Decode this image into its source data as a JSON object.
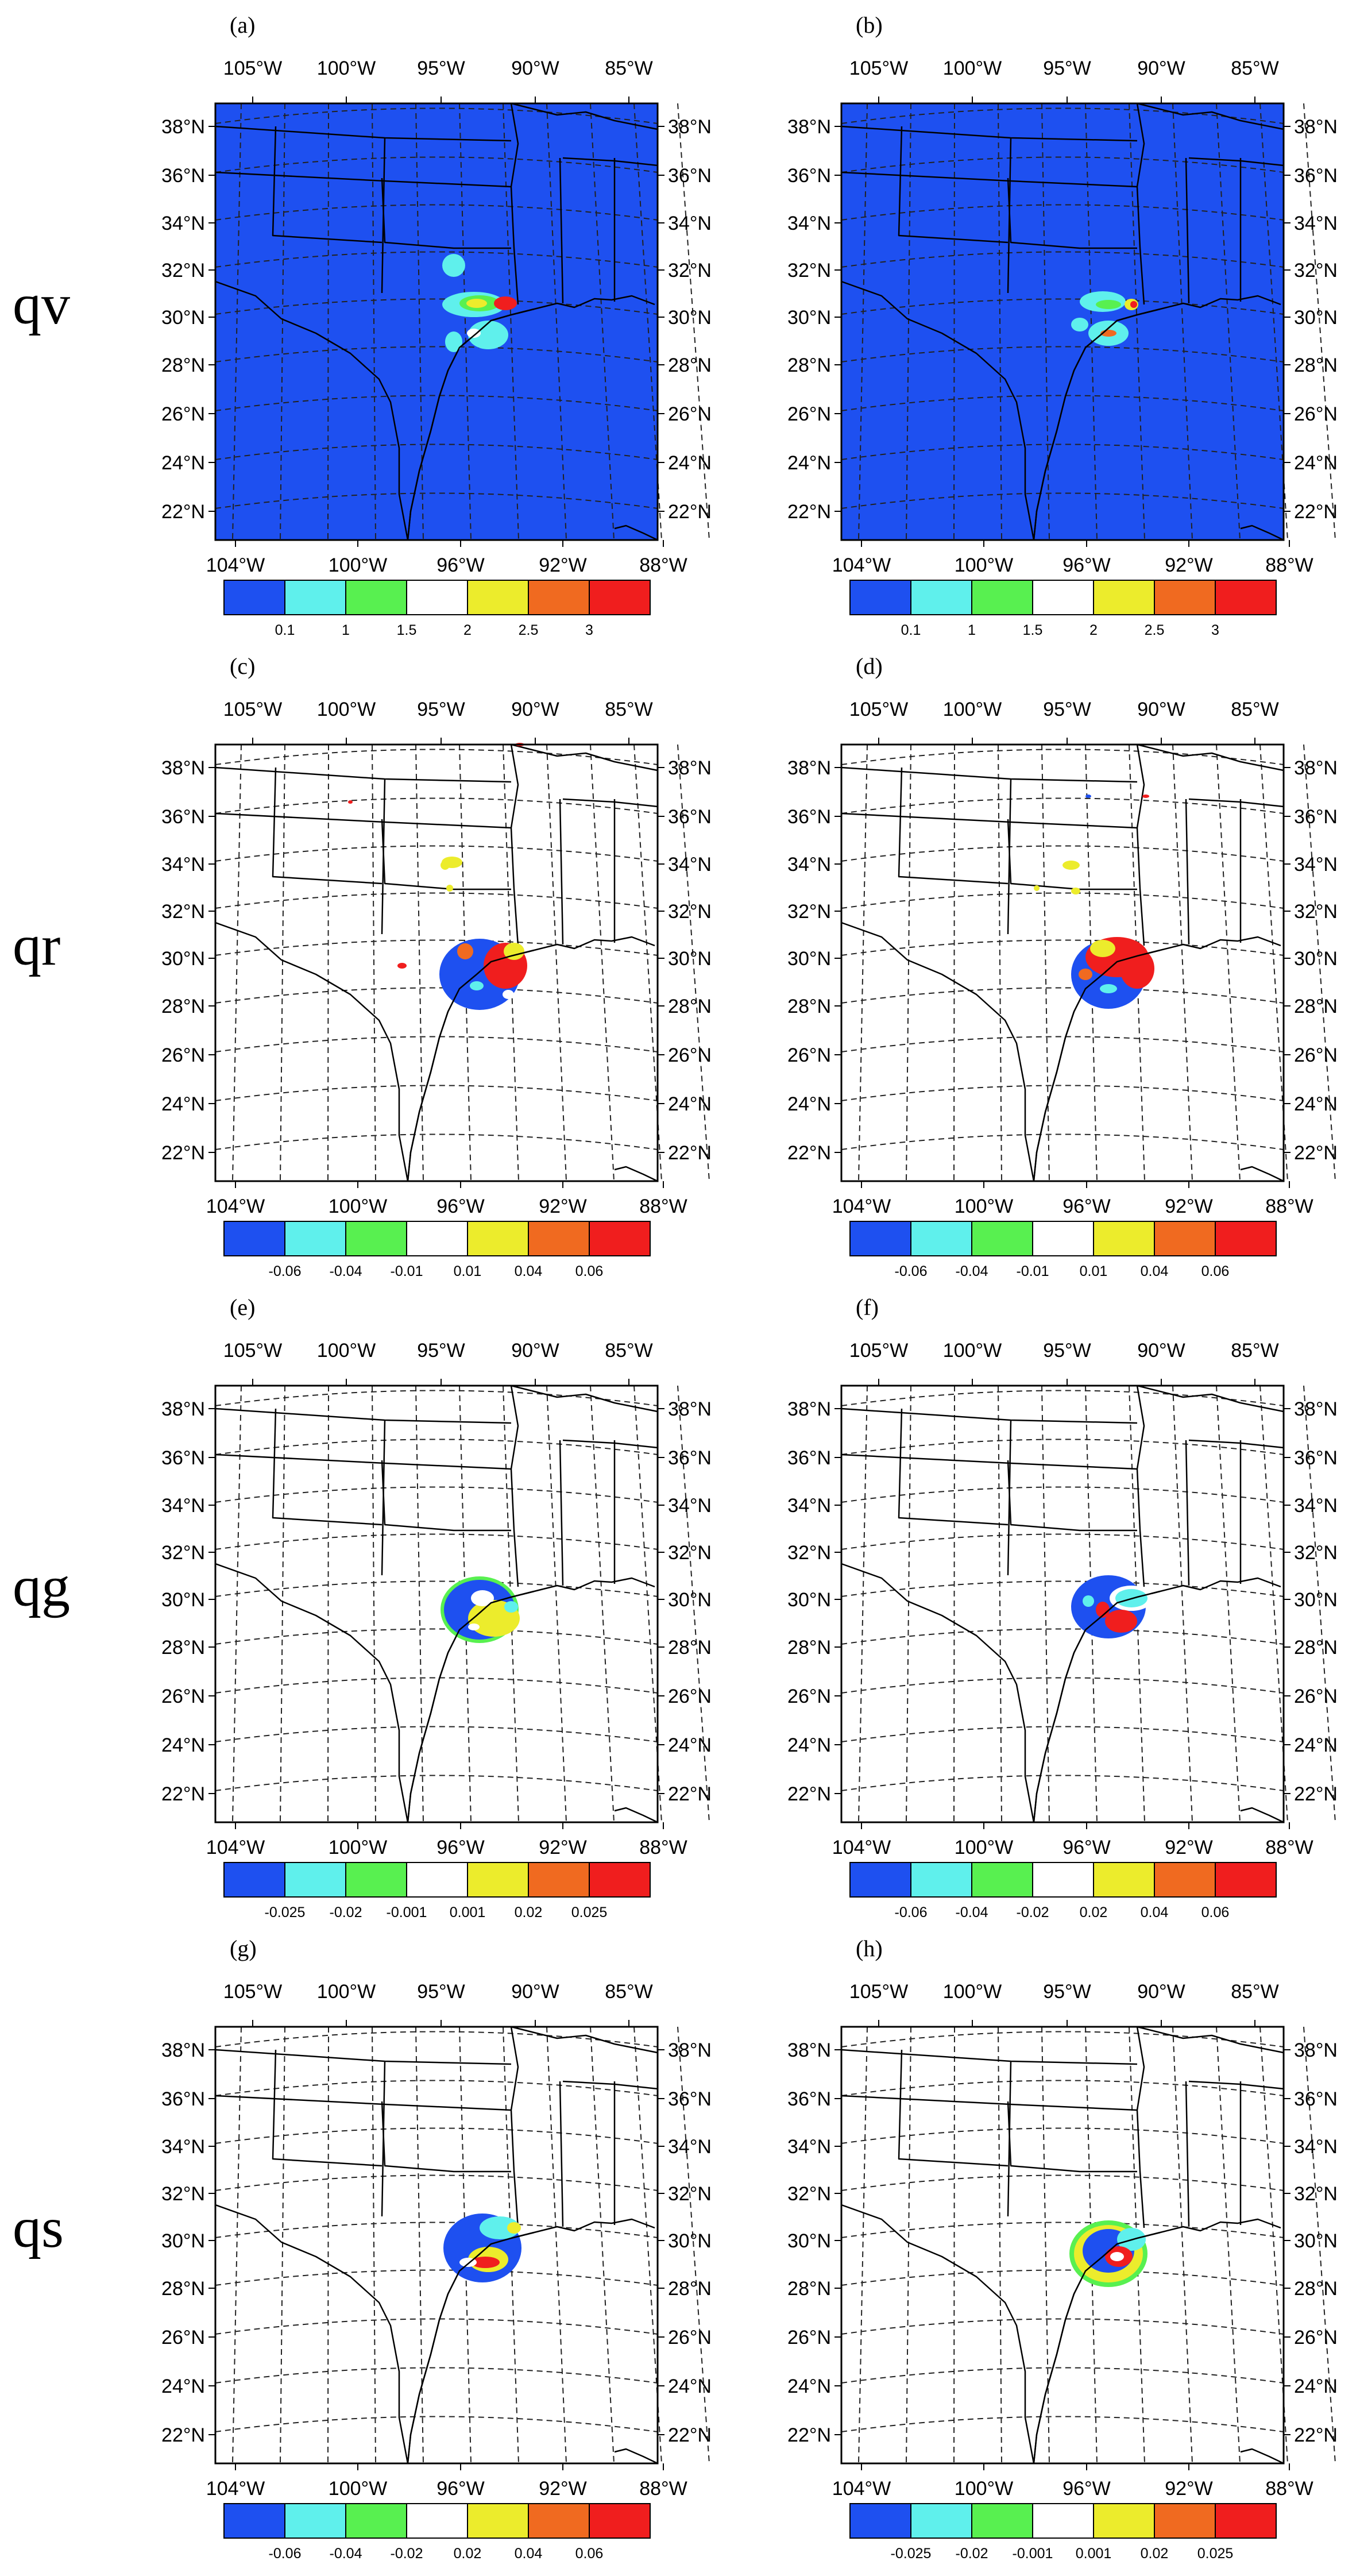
{
  "rows": [
    "qv",
    "qr",
    "qg",
    "qs"
  ],
  "map": {
    "top_lon_labels": [
      "105°W",
      "100°W",
      "95°W",
      "90°W",
      "85°W"
    ],
    "bottom_lon_labels": [
      "104°W",
      "100°W",
      "96°W",
      "92°W",
      "88°W"
    ],
    "lat_labels": [
      "38°N",
      "36°N",
      "34°N",
      "32°N",
      "30°N",
      "28°N",
      "26°N",
      "24°N",
      "22°N"
    ]
  },
  "colors": [
    "#1e50f0",
    "#5ff0ec",
    "#58f050",
    "#ffffff",
    "#ecec2c",
    "#f06a20",
    "#f01e1e"
  ],
  "panels": [
    {
      "letter": "(a)",
      "variable": "qv",
      "background": "blue",
      "ticks": [
        "0.1",
        "1",
        "1.5",
        "2",
        "2.5",
        "3"
      ]
    },
    {
      "letter": "(b)",
      "variable": "qv",
      "background": "blue",
      "ticks": [
        "0.1",
        "1",
        "1.5",
        "2",
        "2.5",
        "3"
      ]
    },
    {
      "letter": "(c)",
      "variable": "qr",
      "background": "white",
      "ticks": [
        "-0.06",
        "-0.04",
        "-0.01",
        "0.01",
        "0.04",
        "0.06"
      ]
    },
    {
      "letter": "(d)",
      "variable": "qr",
      "background": "white",
      "ticks": [
        "-0.06",
        "-0.04",
        "-0.01",
        "0.01",
        "0.04",
        "0.06"
      ]
    },
    {
      "letter": "(e)",
      "variable": "qg",
      "background": "white",
      "ticks": [
        "-0.025",
        "-0.02",
        "-0.001",
        "0.001",
        "0.02",
        "0.025"
      ]
    },
    {
      "letter": "(f)",
      "variable": "qg",
      "background": "white",
      "ticks": [
        "-0.06",
        "-0.04",
        "-0.02",
        "0.02",
        "0.04",
        "0.06"
      ]
    },
    {
      "letter": "(g)",
      "variable": "qs",
      "background": "white",
      "ticks": [
        "-0.06",
        "-0.04",
        "-0.02",
        "0.02",
        "0.04",
        "0.06"
      ]
    },
    {
      "letter": "(h)",
      "variable": "qs",
      "background": "white",
      "ticks": [
        "-0.025",
        "-0.02",
        "-0.001",
        "0.001",
        "0.02",
        "0.025"
      ]
    }
  ]
}
